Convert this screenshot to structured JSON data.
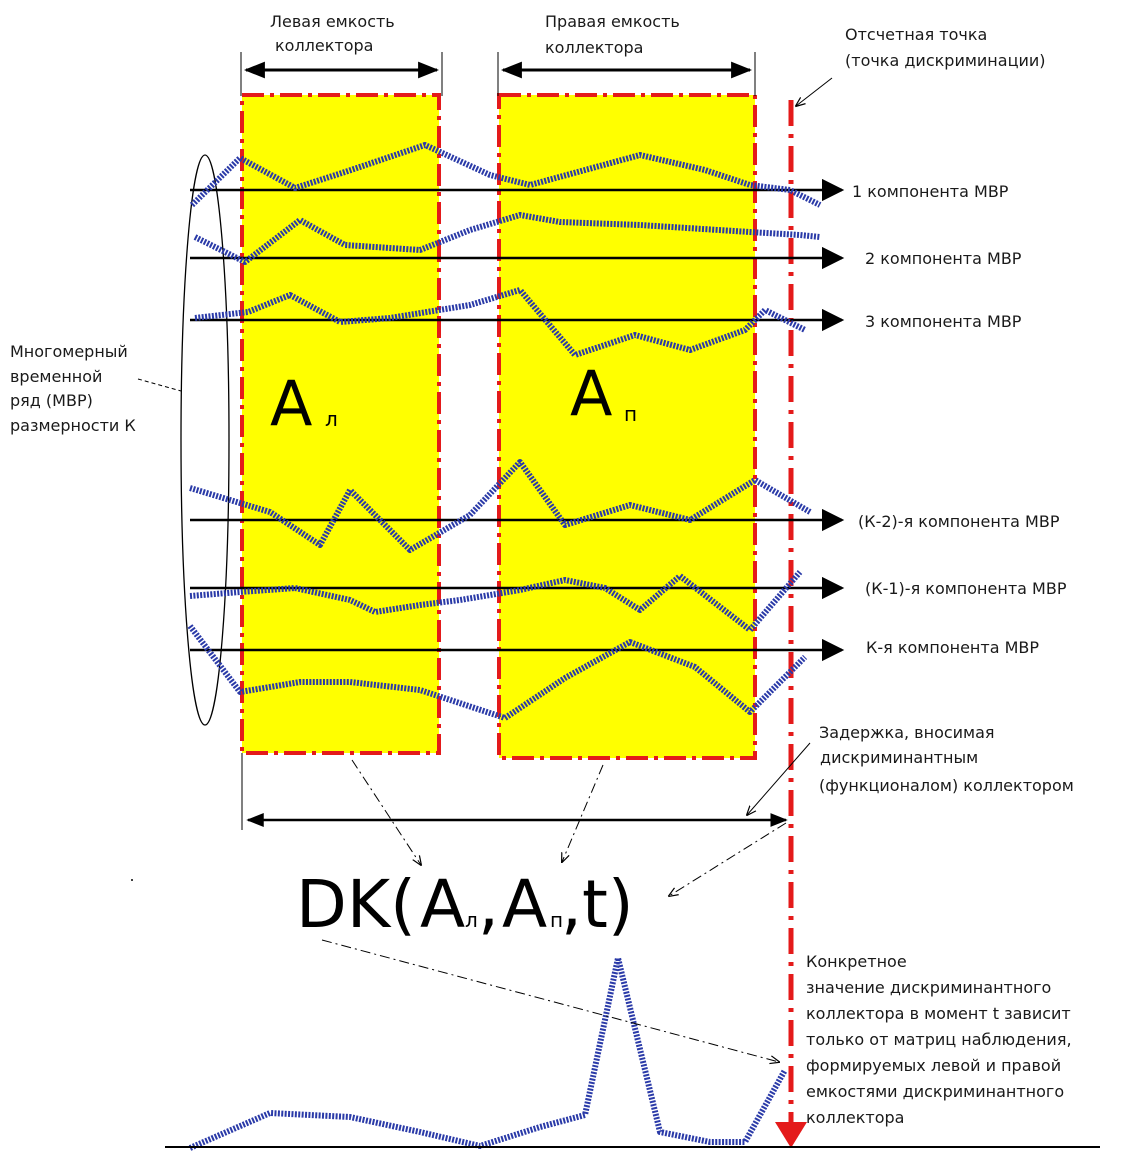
{
  "colors": {
    "collector_fill": "#ffff00",
    "collector_border": "#e41a1a",
    "series_line": "#2a3aa8",
    "arrow": "#000000"
  },
  "labels": {
    "left_capacity_line1": "Левая емкость",
    "left_capacity_line2": "коллектора",
    "right_capacity_line1": "Правая емкость",
    "right_capacity_line2": "коллектора",
    "reference_point_line1": "Отсчетная точка",
    "reference_point_line2": "(точка дискриминации)",
    "mts_line1": "Многомерный",
    "mts_line2": "временной",
    "mts_line3": "ряд (МВР)",
    "mts_line4": "размерности К",
    "delay_line1": "Задержка, вносимая",
    "delay_line2": "дискриминантным",
    "delay_line3": "(функционалом) коллектором",
    "value_line1": "Конкретное",
    "value_line2": "значение дискриминантного",
    "value_line3": "коллектора в момент t зависит",
    "value_line4": "только от матриц наблюдения,",
    "value_line5": "формируемых левой и правой",
    "value_line6": "емкостями дискриминантного",
    "value_line7": "коллектора"
  },
  "symbols": {
    "a_main": "A",
    "a_left_sub": "л",
    "a_right_sub": "п",
    "formula_open": "DK(",
    "formula_comma": ",",
    "formula_close": ",t)"
  },
  "components": [
    "1 компонента МВР",
    "2 компонента МВР",
    "3 компонента МВР",
    "(К-2)-я компонента МВР",
    "(К-1)-я компонента МВР",
    "К-я компонента МВР"
  ]
}
